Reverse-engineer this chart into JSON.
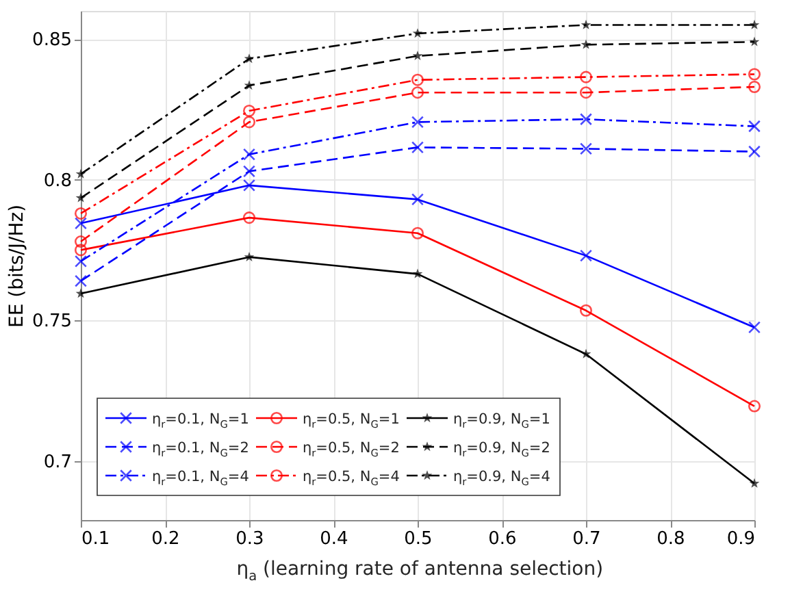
{
  "chart_data": {
    "type": "line",
    "xlabel": "η$_{a}$ (learning rate of antenna selection)",
    "ylabel": "EE (bits/J/Hz)",
    "x": [
      0.1,
      0.3,
      0.5,
      0.7,
      0.9
    ],
    "xlim": [
      0.1,
      0.9
    ],
    "xticks": [
      0.1,
      0.2,
      0.3,
      0.4,
      0.5,
      0.6,
      0.7,
      0.8,
      0.9
    ],
    "ylim": [
      0.679,
      0.86
    ],
    "yticks": [
      0.7,
      0.75,
      0.8,
      0.85
    ],
    "grid": true,
    "legend": "bottom left",
    "series": [
      {
        "name": "η$_{r}$=0.1, N$_{G}$=1",
        "color": "#0000ff",
        "marker": "cross",
        "line_style": "solid",
        "values": [
          0.7845,
          0.798,
          0.793,
          0.773,
          0.7475
        ]
      },
      {
        "name": "η$_{r}$=0.5, N$_{G}$=1",
        "color": "#ff0000",
        "marker": "circle",
        "line_style": "solid",
        "values": [
          0.775,
          0.7865,
          0.781,
          0.7535,
          0.7195
        ]
      },
      {
        "name": "η$_{r}$=0.9, N$_{G}$=1",
        "color": "#000000",
        "marker": "star",
        "line_style": "solid",
        "values": [
          0.7595,
          0.7725,
          0.7665,
          0.738,
          0.692
        ]
      },
      {
        "name": "η$_{r}$=0.1, N$_{G}$=2",
        "color": "#0000ff",
        "marker": "cross",
        "line_style": "dashed",
        "values": [
          0.764,
          0.803,
          0.8115,
          0.811,
          0.81
        ]
      },
      {
        "name": "η$_{r}$=0.5, N$_{G}$=2",
        "color": "#ff0000",
        "marker": "circle",
        "line_style": "dashed",
        "values": [
          0.778,
          0.8205,
          0.831,
          0.831,
          0.833
        ]
      },
      {
        "name": "η$_{r}$=0.9, N$_{G}$=2",
        "color": "#000000",
        "marker": "star",
        "line_style": "dashed",
        "values": [
          0.7935,
          0.8335,
          0.844,
          0.848,
          0.849
        ]
      },
      {
        "name": "η$_{r}$=0.1, N$_{G}$=4",
        "color": "#0000ff",
        "marker": "cross",
        "line_style": "dashdot",
        "values": [
          0.771,
          0.809,
          0.8205,
          0.8215,
          0.819
        ]
      },
      {
        "name": "η$_{r}$=0.5, N$_{G}$=4",
        "color": "#ff0000",
        "marker": "circle",
        "line_style": "dashdot",
        "values": [
          0.788,
          0.8245,
          0.8355,
          0.8365,
          0.8375
        ]
      },
      {
        "name": "η$_{r}$=0.9, N$_{G}$=4",
        "color": "#000000",
        "marker": "star",
        "line_style": "dashdot",
        "values": [
          0.802,
          0.843,
          0.852,
          0.855,
          0.855
        ]
      }
    ]
  }
}
